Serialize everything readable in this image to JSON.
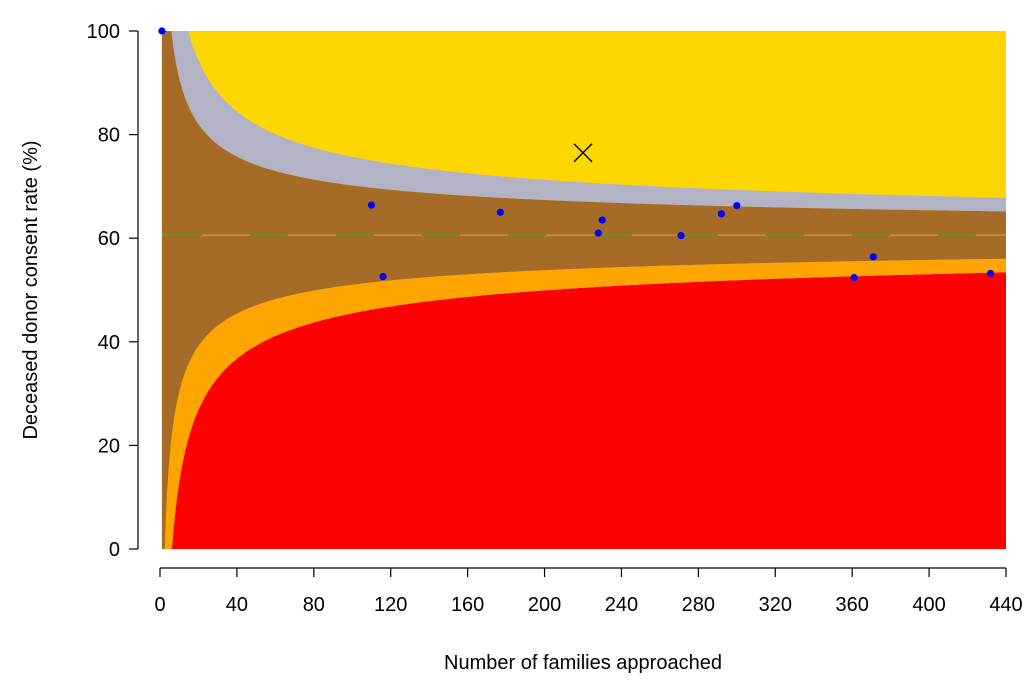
{
  "chart_data": {
    "type": "scatter",
    "title": "",
    "xlabel": "Number of families approached",
    "ylabel": "Deceased donor consent rate (%)",
    "xlim": [
      0,
      440
    ],
    "ylim": [
      0,
      100
    ],
    "x_ticks": [
      "0",
      "40",
      "80",
      "120",
      "160",
      "200",
      "240",
      "280",
      "320",
      "360",
      "400",
      "440"
    ],
    "y_ticks": [
      "0",
      "20",
      "40",
      "60",
      "80",
      "100"
    ],
    "grid": false,
    "legend": "none",
    "funnel": {
      "centre_rate": 60.6,
      "x_max": 440,
      "inner_limit_z": 1.96,
      "outer_limit_z": 3.09
    },
    "region_colors": {
      "above_outer": "#FFD700",
      "between_upper": "#B3B3C6",
      "within_limits": "#A66B26",
      "between_lower": "#FFA500",
      "below_outer": "#FF0000"
    },
    "series": [
      {
        "marker": "dot",
        "color": "#0000FF",
        "points": [
          {
            "x": 1,
            "y": 100
          },
          {
            "x": 110,
            "y": 66.4
          },
          {
            "x": 116,
            "y": 52.6
          },
          {
            "x": 177,
            "y": 65.0
          },
          {
            "x": 228,
            "y": 61.0
          },
          {
            "x": 230,
            "y": 63.5
          },
          {
            "x": 271,
            "y": 60.5
          },
          {
            "x": 292,
            "y": 64.7
          },
          {
            "x": 300,
            "y": 66.3
          },
          {
            "x": 361,
            "y": 52.4
          },
          {
            "x": 371,
            "y": 56.4
          },
          {
            "x": 432,
            "y": 53.2
          }
        ]
      },
      {
        "marker": "cross",
        "color": "#000000",
        "points": [
          {
            "x": 220,
            "y": 76.5
          }
        ]
      }
    ],
    "reference_line": {
      "y": 60.6,
      "color": "#00C000",
      "style": "dashed"
    }
  }
}
